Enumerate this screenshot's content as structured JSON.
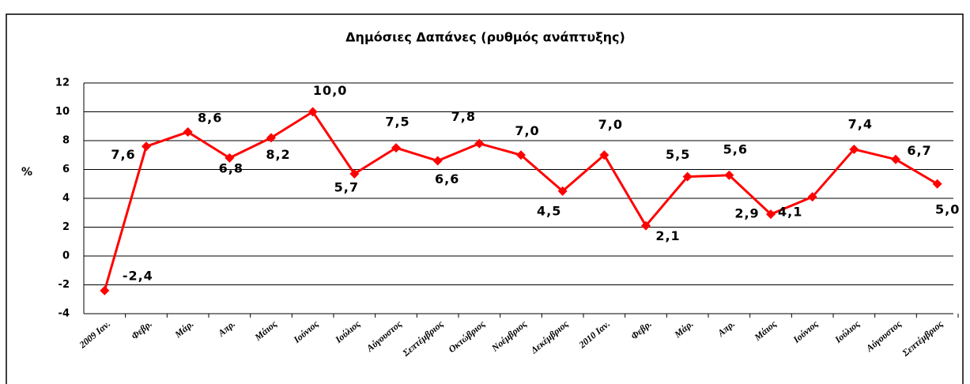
{
  "chart_data": {
    "type": "line",
    "title": "Δημόσιες Δαπάνες (ρυθμός ανάπτυξης)",
    "y_label": "%",
    "categories": [
      "2009 Ιαν.",
      "Φεβρ.",
      "Μάρ.",
      "Απρ.",
      "Μάιος",
      "Ιούνιος",
      "Ιούλιος",
      "Αύγουστος",
      "Σεπτέμβριος",
      "Οκτώβριος",
      "Νοέμβριος",
      "Δεκέμβριος",
      "2010 Ιαν.",
      "Φεβρ.",
      "Μάρ.",
      "Απρ.",
      "Μάιος",
      "Ιούνιος",
      "Ιούλιος",
      "Αύγουστος",
      "Σεπτέμβριος"
    ],
    "series": [
      {
        "name": "Δημόσιες Δαπάνες",
        "color": "#ff0000",
        "values": [
          -2.4,
          7.6,
          8.6,
          6.8,
          8.2,
          10.0,
          5.7,
          7.5,
          6.6,
          7.8,
          7.0,
          4.5,
          7.0,
          2.1,
          5.5,
          5.6,
          2.9,
          4.1,
          7.4,
          6.7,
          5.0
        ],
        "value_labels": [
          "-2,4",
          "7,6",
          "8,6",
          "6,8",
          "8,2",
          "10,0",
          "5,7",
          "7,5",
          "6,6",
          "7,8",
          "7,0",
          "4,5",
          "7,0",
          "2,1",
          "5,5",
          "5,6",
          "2,9",
          "4,1",
          "7,4",
          "6,7",
          "5,0"
        ]
      }
    ],
    "ylim": [
      -4,
      12
    ],
    "yticks": [
      -4,
      -2,
      0,
      2,
      4,
      6,
      8,
      10,
      12
    ],
    "grid": true
  }
}
